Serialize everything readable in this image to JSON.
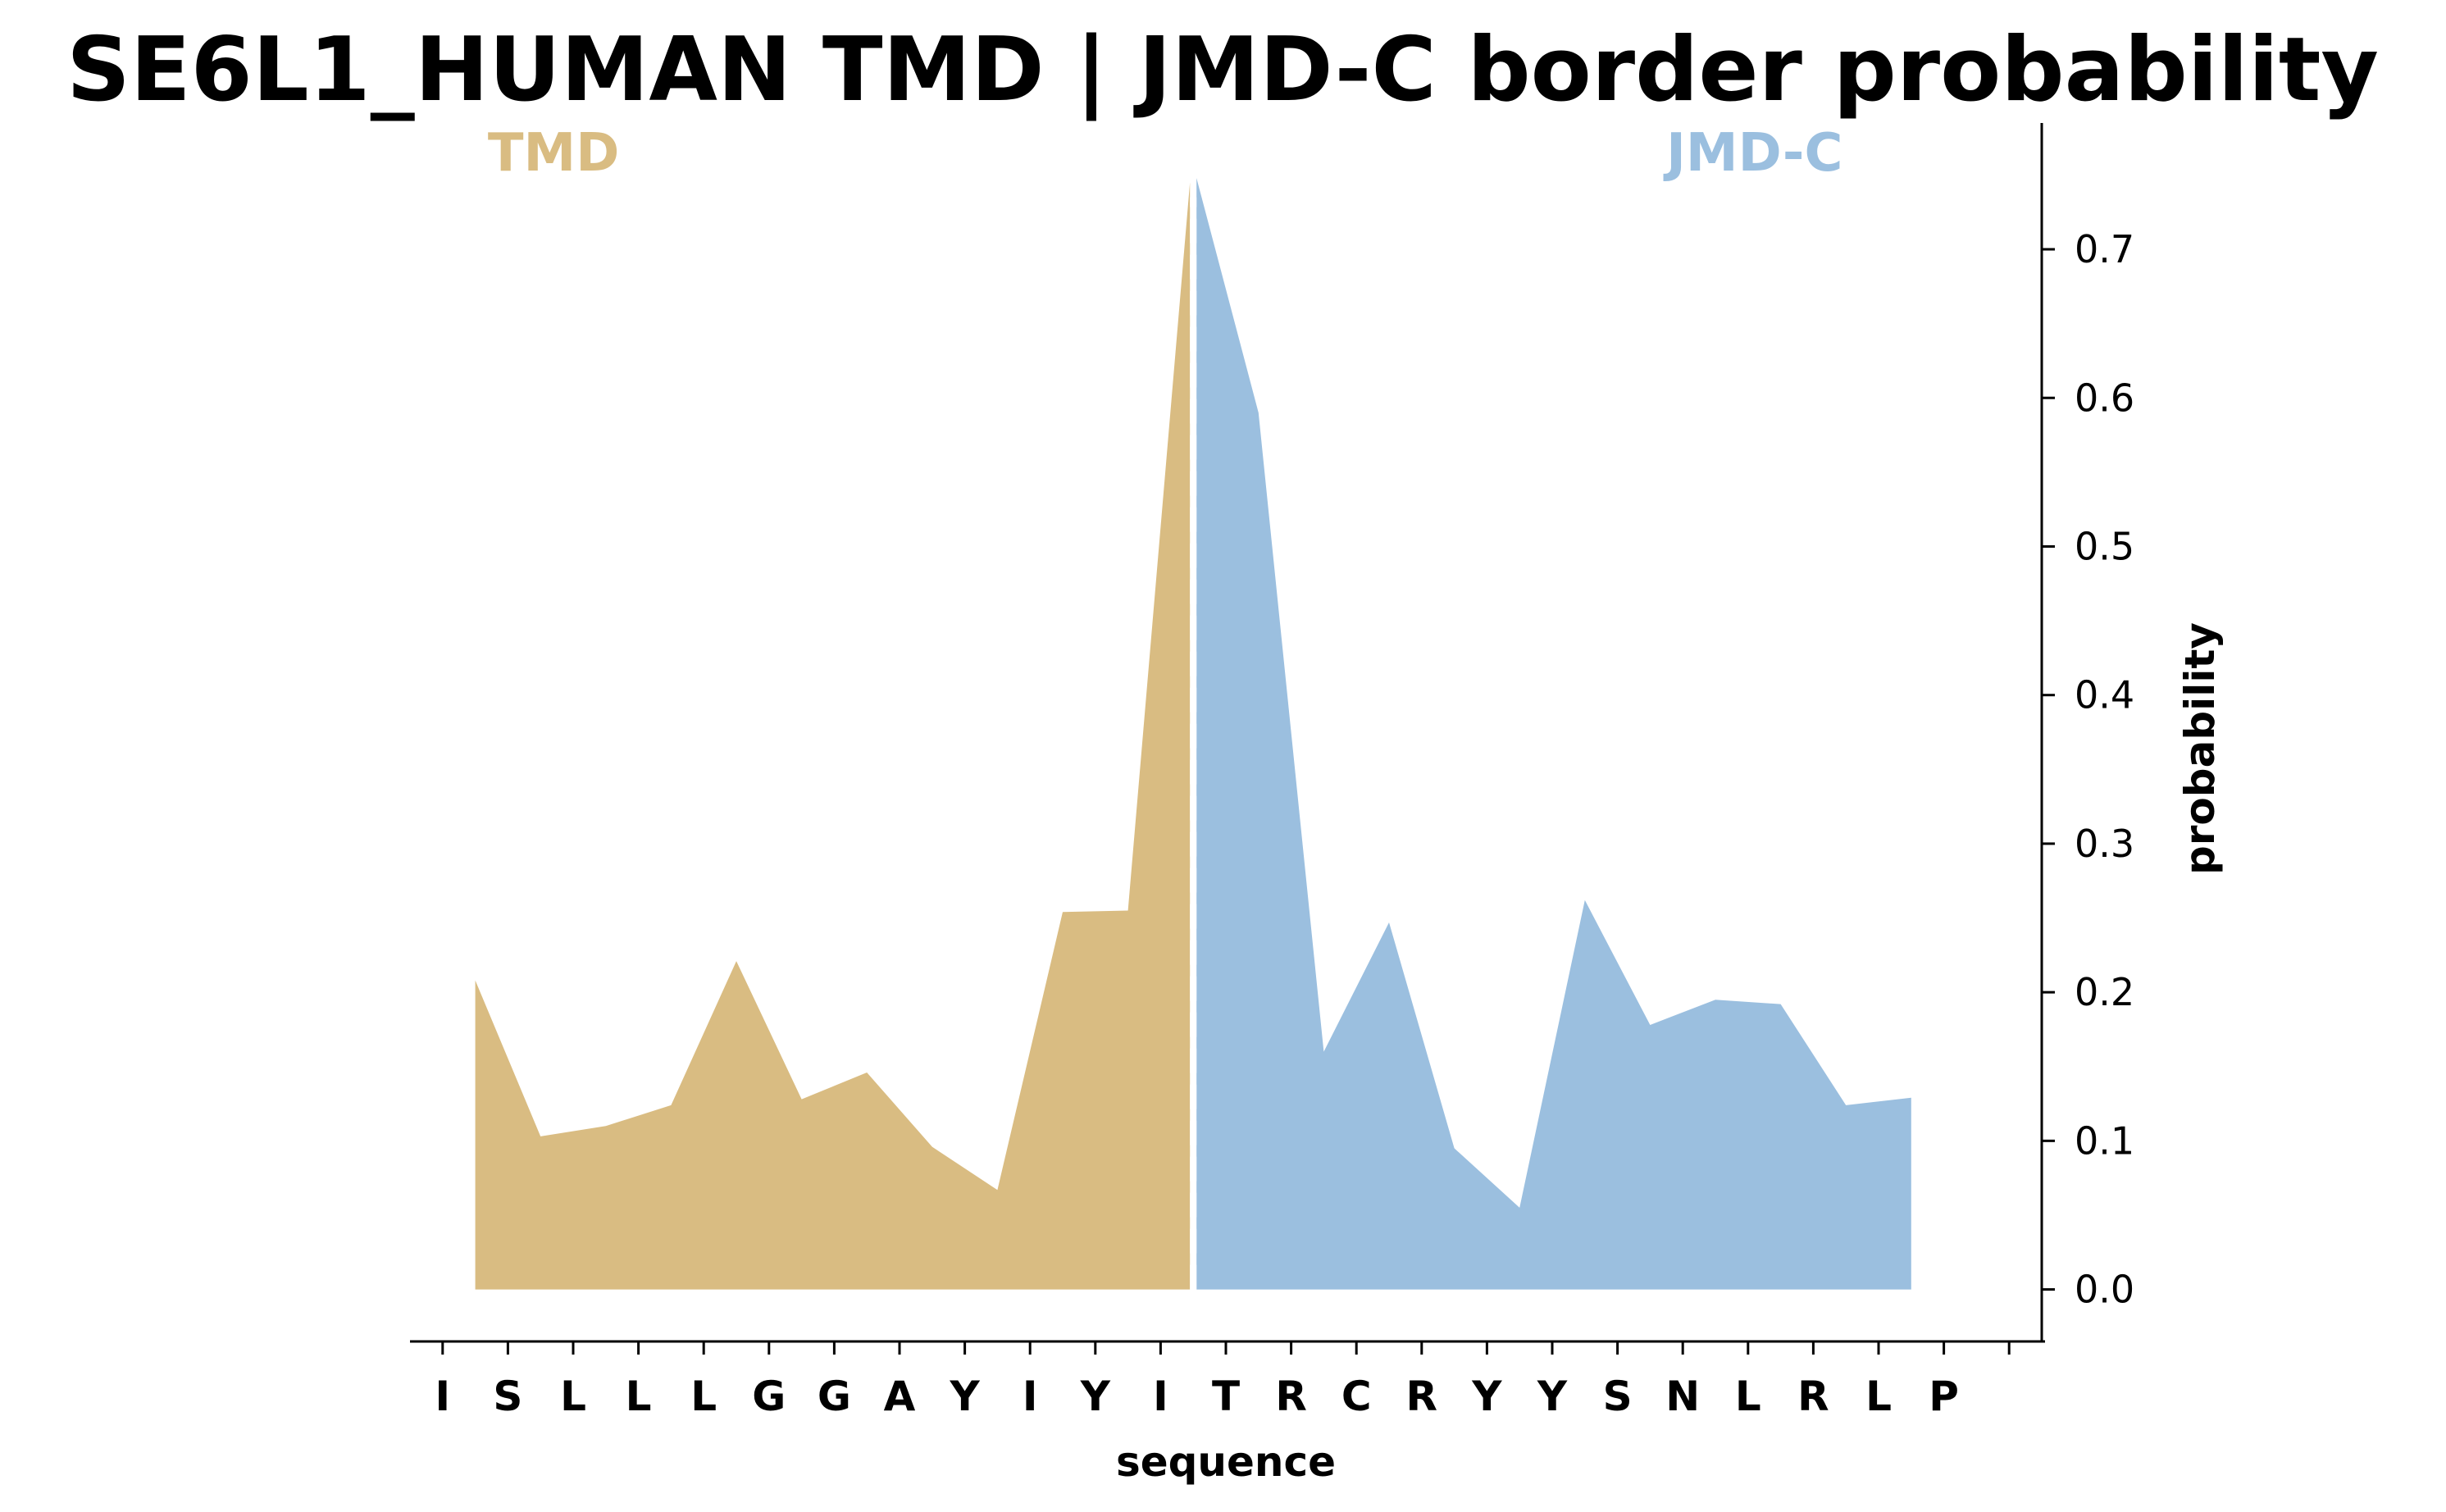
{
  "chart_data": {
    "type": "area",
    "title": "SE6L1_HUMAN TMD | JMD-C border probability",
    "xlabel": "sequence",
    "ylabel": "probability",
    "categories": [
      "I",
      "S",
      "L",
      "L",
      "L",
      "G",
      "G",
      "A",
      "Y",
      "I",
      "Y",
      "I",
      "T",
      "R",
      "C",
      "R",
      "Y",
      "Y",
      "S",
      "N",
      "L",
      "R",
      "L",
      "P"
    ],
    "ylim": [
      -0.035,
      0.785
    ],
    "yticks": [
      "0.0",
      "0.1",
      "0.2",
      "0.3",
      "0.4",
      "0.5",
      "0.6",
      "0.7"
    ],
    "border_x": 11.5,
    "series": [
      {
        "name": "TMD",
        "color": "#d9bc82",
        "x": [
          0.5,
          1.5,
          2.5,
          3.5,
          4.5,
          5.5,
          6.5,
          7.5,
          8.5,
          9.5,
          10.5,
          11.45
        ],
        "values": [
          0.208,
          0.103,
          0.11,
          0.124,
          0.221,
          0.128,
          0.146,
          0.096,
          0.067,
          0.254,
          0.255,
          0.745
        ]
      },
      {
        "name": "JMD-C",
        "color": "#9bbfdf",
        "x": [
          11.55,
          12.5,
          13.5,
          14.5,
          15.5,
          16.5,
          17.5,
          18.5,
          19.5,
          20.5,
          21.5,
          22.5
        ],
        "values": [
          0.748,
          0.59,
          0.16,
          0.247,
          0.095,
          0.055,
          0.262,
          0.178,
          0.195,
          0.192,
          0.124,
          0.129
        ]
      }
    ],
    "legend": "none",
    "grid": false
  }
}
